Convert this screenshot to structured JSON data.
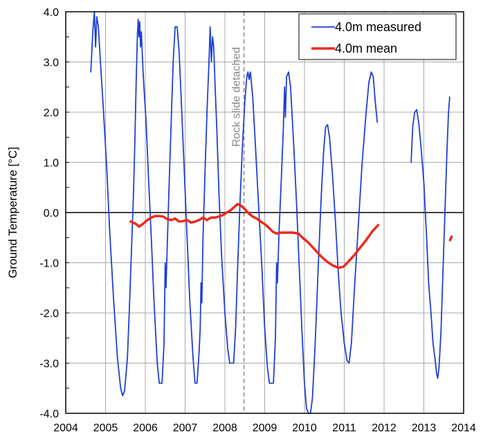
{
  "chart_data": {
    "type": "line",
    "title": "",
    "xlabel": "",
    "ylabel": "Ground Temperature [°C]",
    "xlim": [
      2004,
      2014
    ],
    "ylim": [
      -4.0,
      4.0
    ],
    "x_ticks": [
      "2004",
      "2005",
      "2006",
      "2007",
      "2008",
      "2009",
      "2010",
      "2011",
      "2012",
      "2013",
      "2014"
    ],
    "y_ticks": [
      "4.0",
      "3.0",
      "2.0",
      "1.0",
      "0.0",
      "-1.0",
      "-2.0",
      "-3.0",
      "-4.0"
    ],
    "grid": true,
    "legend_position": "top-right",
    "annotation": {
      "text": "Rock slide detached",
      "x": 2008.48
    },
    "colors": {
      "measured": "#1f3fd6",
      "mean": "#ee2a1b",
      "grid": "#a9a9a9",
      "annotation": "#8a8a8a"
    },
    "series": [
      {
        "name": "4.0m measured",
        "segments": [
          [
            [
              2004.63,
              2.8
            ],
            [
              2004.68,
              3.6
            ],
            [
              2004.72,
              4.0
            ],
            [
              2004.75,
              3.3
            ],
            [
              2004.78,
              3.9
            ],
            [
              2004.82,
              3.7
            ],
            [
              2004.88,
              2.9
            ],
            [
              2004.95,
              2.0
            ],
            [
              2005.03,
              0.9
            ],
            [
              2005.1,
              -0.3
            ],
            [
              2005.2,
              -1.7
            ],
            [
              2005.3,
              -2.9
            ],
            [
              2005.38,
              -3.5
            ],
            [
              2005.43,
              -3.65
            ],
            [
              2005.48,
              -3.55
            ],
            [
              2005.55,
              -2.9
            ],
            [
              2005.6,
              -1.9
            ],
            [
              2005.65,
              -0.8
            ],
            [
              2005.7,
              0.3
            ],
            [
              2005.74,
              1.5
            ],
            [
              2005.77,
              2.6
            ],
            [
              2005.8,
              3.5
            ],
            [
              2005.82,
              3.85
            ],
            [
              2005.84,
              3.5
            ],
            [
              2005.86,
              3.8
            ],
            [
              2005.88,
              3.3
            ],
            [
              2005.9,
              3.6
            ],
            [
              2005.95,
              2.7
            ],
            [
              2006.02,
              1.8
            ],
            [
              2006.08,
              0.7
            ],
            [
              2006.15,
              -0.5
            ],
            [
              2006.22,
              -1.8
            ],
            [
              2006.3,
              -3.0
            ],
            [
              2006.35,
              -3.4
            ],
            [
              2006.42,
              -3.4
            ],
            [
              2006.47,
              -2.6
            ],
            [
              2006.5,
              -1.0
            ],
            [
              2006.52,
              -1.5
            ],
            [
              2006.55,
              -0.7
            ],
            [
              2006.6,
              0.6
            ],
            [
              2006.65,
              1.8
            ],
            [
              2006.7,
              3.0
            ],
            [
              2006.75,
              3.7
            ],
            [
              2006.8,
              3.7
            ],
            [
              2006.85,
              3.2
            ],
            [
              2006.9,
              2.3
            ],
            [
              2006.97,
              1.0
            ],
            [
              2007.05,
              -0.5
            ],
            [
              2007.12,
              -1.8
            ],
            [
              2007.2,
              -2.9
            ],
            [
              2007.25,
              -3.4
            ],
            [
              2007.3,
              -3.4
            ],
            [
              2007.35,
              -2.8
            ],
            [
              2007.38,
              -2.3
            ],
            [
              2007.4,
              -1.4
            ],
            [
              2007.42,
              -1.8
            ],
            [
              2007.45,
              -0.5
            ],
            [
              2007.5,
              0.8
            ],
            [
              2007.55,
              2.0
            ],
            [
              2007.6,
              3.0
            ],
            [
              2007.63,
              3.7
            ],
            [
              2007.66,
              3.0
            ],
            [
              2007.69,
              3.5
            ],
            [
              2007.72,
              3.3
            ],
            [
              2007.75,
              2.6
            ],
            [
              2007.8,
              1.6
            ],
            [
              2007.85,
              0.4
            ],
            [
              2007.92,
              -0.9
            ],
            [
              2008.0,
              -2.0
            ],
            [
              2008.07,
              -2.7
            ],
            [
              2008.12,
              -3.0
            ],
            [
              2008.22,
              -3.0
            ],
            [
              2008.27,
              -2.3
            ],
            [
              2008.32,
              -1.1
            ],
            [
              2008.38,
              0.2
            ],
            [
              2008.44,
              1.3
            ],
            [
              2008.5,
              2.2
            ],
            [
              2008.55,
              2.7
            ],
            [
              2008.58,
              2.8
            ],
            [
              2008.61,
              2.65
            ],
            [
              2008.64,
              2.8
            ],
            [
              2008.7,
              2.3
            ],
            [
              2008.77,
              1.3
            ],
            [
              2008.85,
              0.1
            ],
            [
              2008.93,
              -1.1
            ],
            [
              2009.0,
              -2.3
            ],
            [
              2009.07,
              -3.1
            ],
            [
              2009.12,
              -3.4
            ],
            [
              2009.22,
              -3.4
            ],
            [
              2009.27,
              -2.5
            ],
            [
              2009.3,
              -1.0
            ],
            [
              2009.32,
              -1.4
            ],
            [
              2009.36,
              -0.4
            ],
            [
              2009.42,
              0.7
            ],
            [
              2009.47,
              1.7
            ],
            [
              2009.5,
              2.5
            ],
            [
              2009.52,
              1.9
            ],
            [
              2009.55,
              2.7
            ],
            [
              2009.6,
              2.8
            ],
            [
              2009.65,
              2.5
            ],
            [
              2009.72,
              1.5
            ],
            [
              2009.8,
              0.2
            ],
            [
              2009.88,
              -1.3
            ],
            [
              2009.95,
              -2.6
            ],
            [
              2010.0,
              -3.4
            ],
            [
              2010.05,
              -3.9
            ],
            [
              2010.1,
              -4.0
            ],
            [
              2010.15,
              -4.0
            ],
            [
              2010.2,
              -3.7
            ],
            [
              2010.27,
              -2.6
            ],
            [
              2010.35,
              -1.0
            ],
            [
              2010.42,
              0.3
            ],
            [
              2010.48,
              1.2
            ],
            [
              2010.53,
              1.7
            ],
            [
              2010.58,
              1.75
            ],
            [
              2010.63,
              1.5
            ],
            [
              2010.7,
              0.8
            ],
            [
              2010.78,
              -0.2
            ],
            [
              2010.85,
              -1.2
            ],
            [
              2010.92,
              -2.0
            ],
            [
              2011.0,
              -2.6
            ],
            [
              2011.07,
              -2.95
            ],
            [
              2011.12,
              -3.0
            ],
            [
              2011.18,
              -2.6
            ],
            [
              2011.25,
              -1.6
            ],
            [
              2011.35,
              -0.3
            ],
            [
              2011.45,
              1.0
            ],
            [
              2011.55,
              2.0
            ],
            [
              2011.62,
              2.6
            ],
            [
              2011.68,
              2.8
            ],
            [
              2011.73,
              2.7
            ],
            [
              2011.78,
              2.2
            ],
            [
              2011.83,
              1.8
            ]
          ],
          [
            [
              2012.68,
              1.0
            ],
            [
              2012.72,
              1.7
            ],
            [
              2012.77,
              2.0
            ],
            [
              2012.82,
              2.05
            ],
            [
              2012.87,
              1.8
            ],
            [
              2012.93,
              1.3
            ],
            [
              2013.0,
              0.6
            ],
            [
              2013.07,
              -0.5
            ],
            [
              2013.12,
              -1.4
            ],
            [
              2013.18,
              -2.0
            ],
            [
              2013.23,
              -2.6
            ],
            [
              2013.28,
              -2.9
            ],
            [
              2013.32,
              -3.2
            ],
            [
              2013.35,
              -3.3
            ],
            [
              2013.38,
              -3.1
            ],
            [
              2013.43,
              -2.4
            ],
            [
              2013.48,
              -1.2
            ],
            [
              2013.53,
              0.0
            ],
            [
              2013.58,
              1.2
            ],
            [
              2013.62,
              2.0
            ],
            [
              2013.65,
              2.3
            ]
          ]
        ]
      },
      {
        "name": "4.0m mean",
        "segments": [
          [
            [
              2005.63,
              -0.18
            ],
            [
              2005.75,
              -0.22
            ],
            [
              2005.85,
              -0.28
            ],
            [
              2005.95,
              -0.22
            ],
            [
              2006.05,
              -0.15
            ],
            [
              2006.15,
              -0.1
            ],
            [
              2006.25,
              -0.07
            ],
            [
              2006.35,
              -0.07
            ],
            [
              2006.45,
              -0.08
            ],
            [
              2006.55,
              -0.13
            ],
            [
              2006.65,
              -0.15
            ],
            [
              2006.75,
              -0.12
            ],
            [
              2006.85,
              -0.18
            ],
            [
              2006.95,
              -0.17
            ],
            [
              2007.05,
              -0.15
            ],
            [
              2007.15,
              -0.2
            ],
            [
              2007.25,
              -0.18
            ],
            [
              2007.35,
              -0.15
            ],
            [
              2007.45,
              -0.1
            ],
            [
              2007.55,
              -0.15
            ],
            [
              2007.65,
              -0.1
            ],
            [
              2007.75,
              -0.1
            ],
            [
              2007.85,
              -0.08
            ],
            [
              2007.95,
              -0.05
            ],
            [
              2008.05,
              0.0
            ],
            [
              2008.15,
              0.05
            ],
            [
              2008.25,
              0.12
            ],
            [
              2008.32,
              0.17
            ],
            [
              2008.4,
              0.14
            ],
            [
              2008.5,
              0.07
            ],
            [
              2008.6,
              -0.02
            ],
            [
              2008.7,
              -0.08
            ],
            [
              2008.8,
              -0.12
            ],
            [
              2008.9,
              -0.18
            ],
            [
              2009.0,
              -0.23
            ],
            [
              2009.1,
              -0.3
            ],
            [
              2009.2,
              -0.38
            ],
            [
              2009.3,
              -0.42
            ],
            [
              2009.4,
              -0.4
            ],
            [
              2009.55,
              -0.4
            ],
            [
              2009.7,
              -0.4
            ],
            [
              2009.85,
              -0.42
            ],
            [
              2009.95,
              -0.5
            ],
            [
              2010.1,
              -0.6
            ],
            [
              2010.25,
              -0.73
            ],
            [
              2010.4,
              -0.86
            ],
            [
              2010.55,
              -0.97
            ],
            [
              2010.7,
              -1.05
            ],
            [
              2010.85,
              -1.1
            ],
            [
              2010.98,
              -1.08
            ],
            [
              2011.1,
              -0.98
            ],
            [
              2011.25,
              -0.85
            ],
            [
              2011.4,
              -0.7
            ],
            [
              2011.55,
              -0.55
            ],
            [
              2011.7,
              -0.38
            ],
            [
              2011.85,
              -0.25
            ]
          ],
          [
            [
              2013.66,
              -0.55
            ],
            [
              2013.7,
              -0.48
            ]
          ]
        ]
      }
    ]
  }
}
